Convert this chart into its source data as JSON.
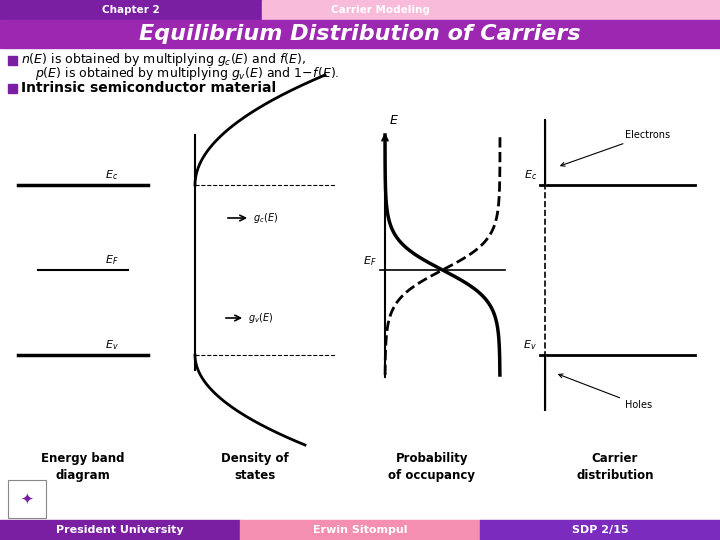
{
  "title": "Equilibrium Distribution of Carriers",
  "chapter_label": "Chapter 2",
  "chapter_topic": "Carrier Modeling",
  "bullet2": "Intrinsic semiconductor material",
  "label_energy_band": "Energy band\ndiagram",
  "label_density": "Density of\nstates",
  "label_probability": "Probability\nof occupancy",
  "label_carrier": "Carrier\ndistribution",
  "footer_left": "President University",
  "footer_mid": "Erwin Sitompul",
  "footer_right": "SDP 2/15",
  "bg_color": "#ffffff",
  "header_left_color": "#7B1FA2",
  "header_right_color": "#F8BBD9",
  "title_bg_color": "#9C27B0",
  "title_text_color": "#ffffff",
  "bullet_square_color": "#7B1FA2",
  "footer_left_color": "#7B1FA2",
  "footer_mid_color": "#F48FB1",
  "footer_right_color": "#7B2CBE",
  "footer_text_color": "#ffffff"
}
